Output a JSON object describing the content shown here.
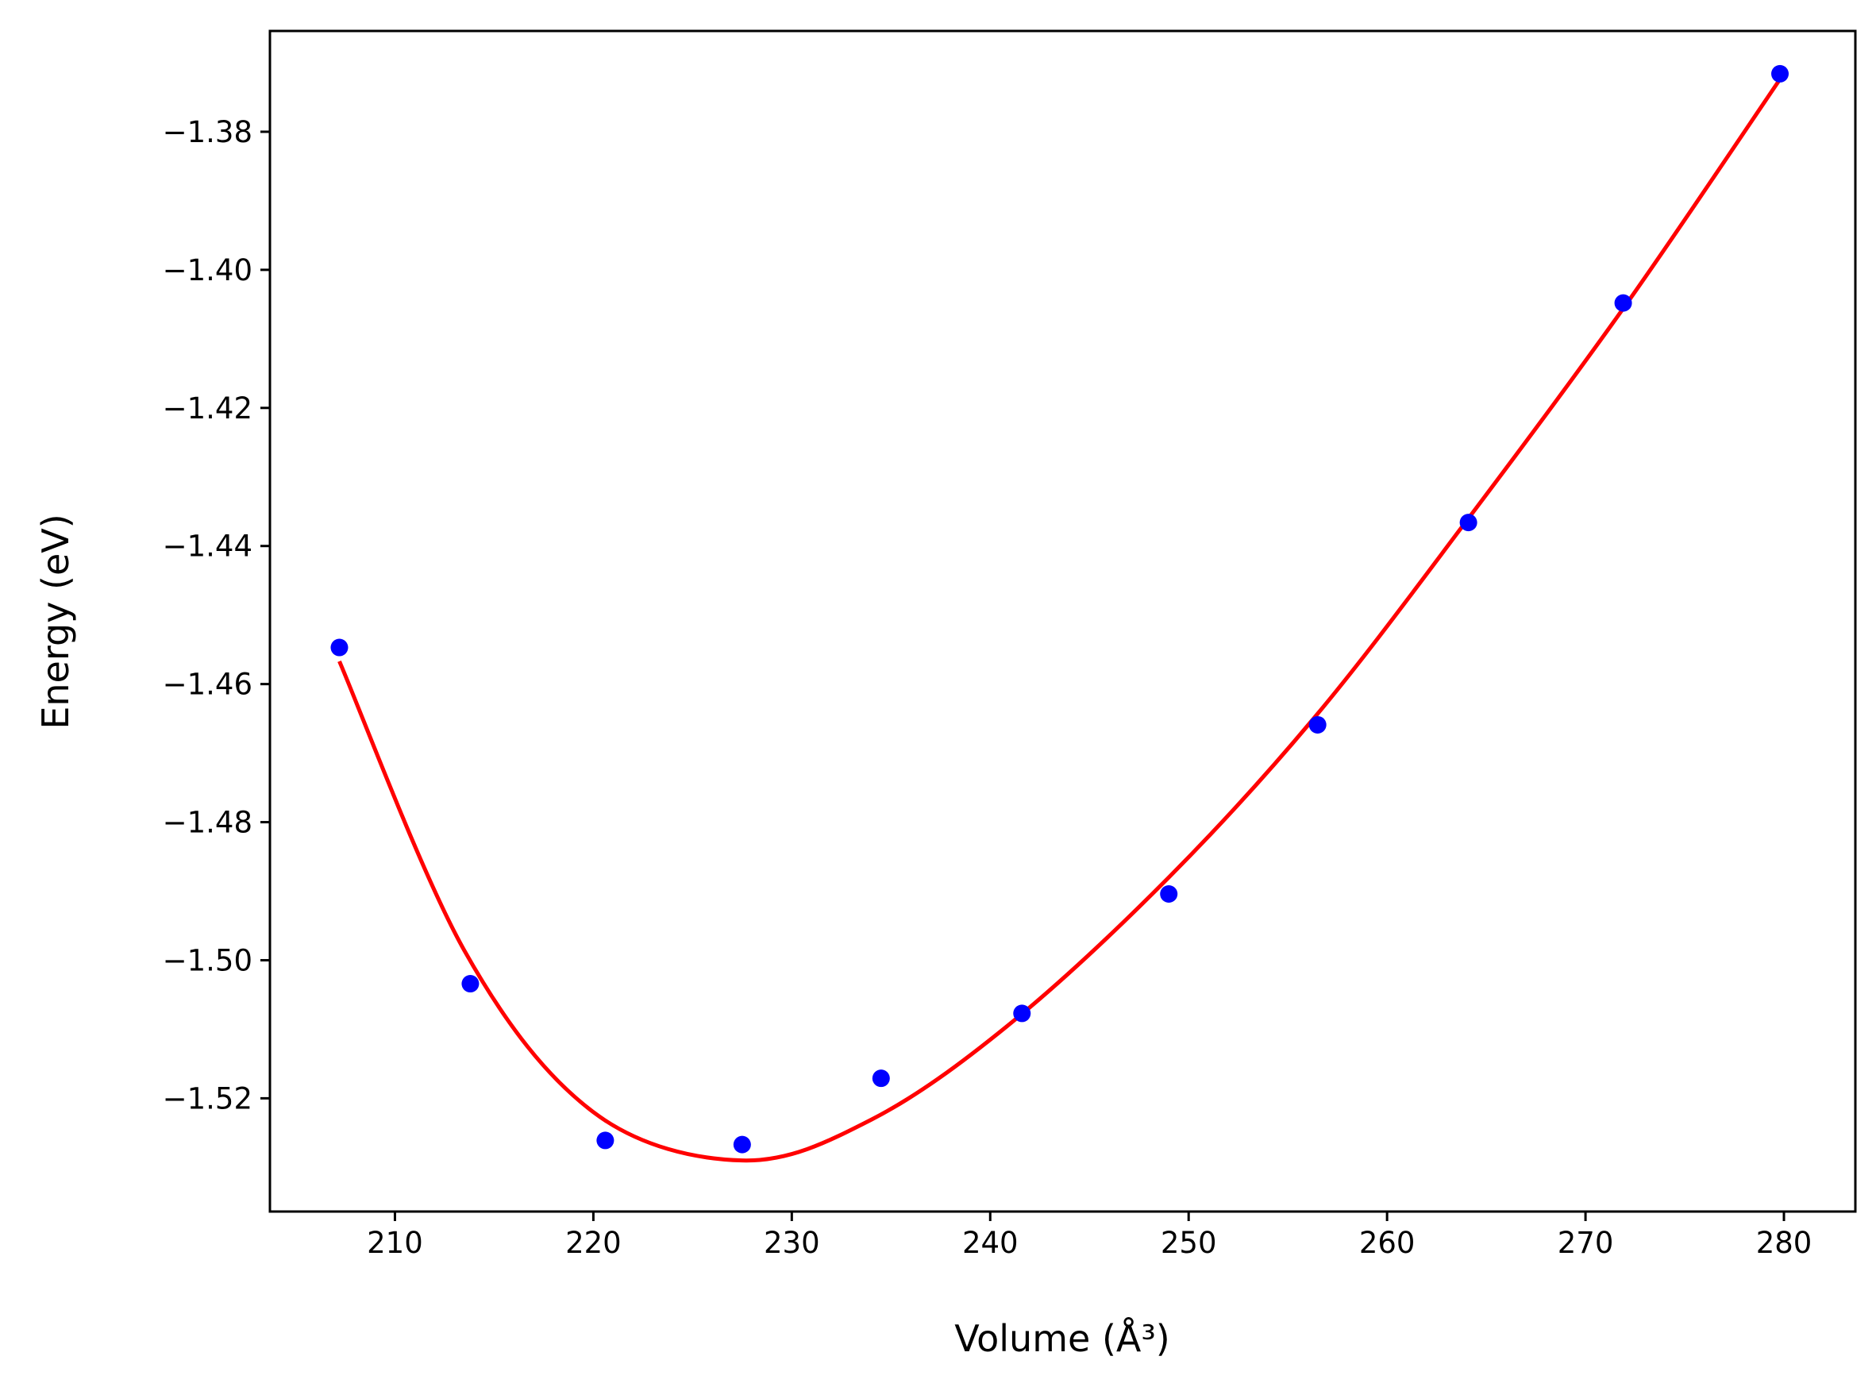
{
  "chart_data": {
    "type": "scatter",
    "xlabel": "Volume (Å³)",
    "ylabel": "Energy (eV)",
    "xlim": [
      203.7,
      283.6
    ],
    "ylim": [
      -1.5364,
      -1.3654
    ],
    "xticks": [
      210,
      220,
      230,
      240,
      250,
      260,
      270,
      280
    ],
    "xtick_labels": [
      "210",
      "220",
      "230",
      "240",
      "250",
      "260",
      "270",
      "280"
    ],
    "yticks": [
      -1.52,
      -1.5,
      -1.48,
      -1.46,
      -1.44,
      -1.42,
      -1.4,
      -1.38
    ],
    "ytick_labels": [
      "−1.52",
      "−1.50",
      "−1.48",
      "−1.46",
      "−1.44",
      "−1.42",
      "−1.40",
      "−1.38"
    ],
    "grid": false,
    "series": [
      {
        "kind": "scatter",
        "color": "#0000ff",
        "x": [
          207.2,
          213.8,
          220.6,
          227.5,
          234.5,
          241.6,
          249.0,
          256.5,
          264.1,
          271.9,
          279.8
        ],
        "y": [
          -1.4547,
          -1.5034,
          -1.5261,
          -1.5267,
          -1.5171,
          -1.5077,
          -1.4904,
          -1.4659,
          -1.4366,
          -1.4048,
          -1.3716
        ]
      },
      {
        "kind": "line",
        "color": "#ff0000",
        "x": [
          207.2,
          213.5,
          220.0,
          227.5,
          234.0,
          241.0,
          249.0,
          256.5,
          264.1,
          272.0,
          279.8
        ],
        "y": [
          -1.4567,
          -1.4986,
          -1.522,
          -1.529,
          -1.5231,
          -1.5092,
          -1.488,
          -1.4643,
          -1.436,
          -1.4052,
          -1.3724
        ]
      }
    ]
  }
}
